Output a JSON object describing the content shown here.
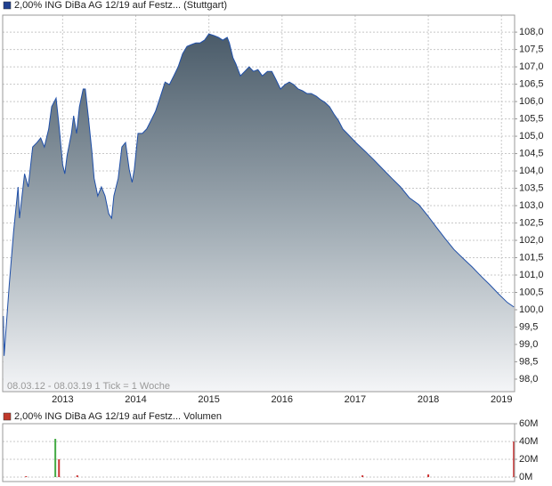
{
  "chart_data": [
    {
      "type": "area",
      "title": "2,00% ING DiBa AG 12/19 auf Festz... (Stuttgart)",
      "note": "08.03.12 - 08.03.19   1 Tick = 1 Woche",
      "color": "#1f4fa8",
      "legend_color": "#1f3f8f",
      "grid": true,
      "xlim": [
        2012.18,
        2019.18
      ],
      "xticks": [
        2013,
        2014,
        2015,
        2016,
        2017,
        2018,
        2019
      ],
      "ylim": [
        97.64,
        108.49
      ],
      "yticks": [
        {
          "value": 98,
          "label": "98,0"
        },
        {
          "value": 98.5,
          "label": "98,5"
        },
        {
          "value": 99,
          "label": "99,0"
        },
        {
          "value": 99.5,
          "label": "99,5"
        },
        {
          "value": 100,
          "label": "100,0"
        },
        {
          "value": 100.5,
          "label": "100,5"
        },
        {
          "value": 101,
          "label": "101,0"
        },
        {
          "value": 101.5,
          "label": "101,5"
        },
        {
          "value": 102,
          "label": "102,0"
        },
        {
          "value": 102.5,
          "label": "102,5"
        },
        {
          "value": 103,
          "label": "103,0"
        },
        {
          "value": 103.5,
          "label": "103,5"
        },
        {
          "value": 104,
          "label": "104,0"
        },
        {
          "value": 104.5,
          "label": "104,5"
        },
        {
          "value": 105,
          "label": "105,0"
        },
        {
          "value": 105.5,
          "label": "105,5"
        },
        {
          "value": 106,
          "label": "106,0"
        },
        {
          "value": 106.5,
          "label": "106,5"
        },
        {
          "value": 107,
          "label": "107,0"
        },
        {
          "value": 107.5,
          "label": "107,5"
        },
        {
          "value": 108,
          "label": "108,0"
        }
      ],
      "x": [
        2012.19,
        2012.2,
        2012.27,
        2012.33,
        2012.39,
        2012.41,
        2012.48,
        2012.53,
        2012.59,
        2012.65,
        2012.7,
        2012.75,
        2012.81,
        2012.85,
        2012.91,
        2012.95,
        2013.0,
        2013.03,
        2013.06,
        2013.12,
        2013.15,
        2013.19,
        2013.23,
        2013.28,
        2013.31,
        2013.35,
        2013.4,
        2013.43,
        2013.48,
        2013.53,
        2013.58,
        2013.63,
        2013.67,
        2013.7,
        2013.76,
        2013.81,
        2013.86,
        2013.91,
        2013.95,
        2013.98,
        2014.03,
        2014.09,
        2014.15,
        2014.21,
        2014.27,
        2014.33,
        2014.4,
        2014.46,
        2014.52,
        2014.58,
        2014.64,
        2014.7,
        2014.76,
        2014.82,
        2014.88,
        2014.94,
        2015.0,
        2015.07,
        2015.13,
        2015.19,
        2015.25,
        2015.28,
        2015.33,
        2015.37,
        2015.43,
        2015.49,
        2015.55,
        2015.61,
        2015.67,
        2015.73,
        2015.8,
        2015.86,
        2015.92,
        2015.98,
        2016.04,
        2016.1,
        2016.16,
        2016.22,
        2016.28,
        2016.34,
        2016.4,
        2016.47,
        2016.53,
        2016.59,
        2016.65,
        2016.71,
        2016.77,
        2016.83,
        2016.89,
        2017.01,
        2017.14,
        2017.26,
        2017.38,
        2017.5,
        2017.62,
        2017.74,
        2017.87,
        2017.99,
        2018.11,
        2018.23,
        2018.35,
        2018.47,
        2018.6,
        2018.72,
        2018.84,
        2018.96,
        2019.08,
        2019.17
      ],
      "values": [
        99.82,
        98.67,
        100.72,
        102.26,
        103.54,
        102.64,
        103.92,
        103.54,
        104.69,
        104.82,
        104.95,
        104.69,
        105.21,
        105.85,
        106.1,
        105.33,
        104.18,
        103.92,
        104.44,
        105.08,
        105.59,
        105.08,
        105.85,
        106.36,
        106.36,
        105.59,
        104.56,
        103.79,
        103.28,
        103.54,
        103.28,
        102.77,
        102.64,
        103.28,
        103.79,
        104.69,
        104.82,
        104.05,
        103.67,
        104.05,
        105.08,
        105.08,
        105.21,
        105.46,
        105.72,
        106.1,
        106.56,
        106.49,
        106.74,
        107.0,
        107.38,
        107.59,
        107.64,
        107.69,
        107.69,
        107.77,
        107.95,
        107.9,
        107.85,
        107.77,
        107.85,
        107.69,
        107.26,
        107.08,
        106.74,
        106.87,
        107.0,
        106.87,
        106.92,
        106.74,
        106.87,
        106.87,
        106.62,
        106.36,
        106.49,
        106.56,
        106.49,
        106.36,
        106.31,
        106.23,
        106.23,
        106.15,
        106.05,
        105.97,
        105.85,
        105.64,
        105.46,
        105.21,
        105.08,
        104.82,
        104.56,
        104.31,
        104.05,
        103.79,
        103.54,
        103.23,
        103.03,
        102.72,
        102.38,
        102.05,
        101.74,
        101.49,
        101.23,
        100.97,
        100.72,
        100.46,
        100.21,
        100.08
      ]
    },
    {
      "type": "bar",
      "title": "2,00% ING DiBa AG 12/19 auf Festz... Volumen",
      "legend_color": "#c0392b",
      "xlim": [
        2012.18,
        2019.18
      ],
      "ylim": [
        0,
        60
      ],
      "yticks": [
        {
          "value": 0,
          "label": "0M"
        },
        {
          "value": 20,
          "label": "20M"
        },
        {
          "value": 40,
          "label": "40M"
        },
        {
          "value": 60,
          "label": "60M"
        }
      ],
      "x": [
        2012.5,
        2012.9,
        2012.95,
        2013.2,
        2017.1,
        2018.0,
        2019.17
      ],
      "values": [
        1,
        43,
        20,
        2,
        2,
        3,
        40
      ],
      "colors": [
        "#cc3333",
        "#44aa44",
        "#cc3333",
        "#cc3333",
        "#cc3333",
        "#cc3333",
        "#cc3333"
      ]
    }
  ]
}
